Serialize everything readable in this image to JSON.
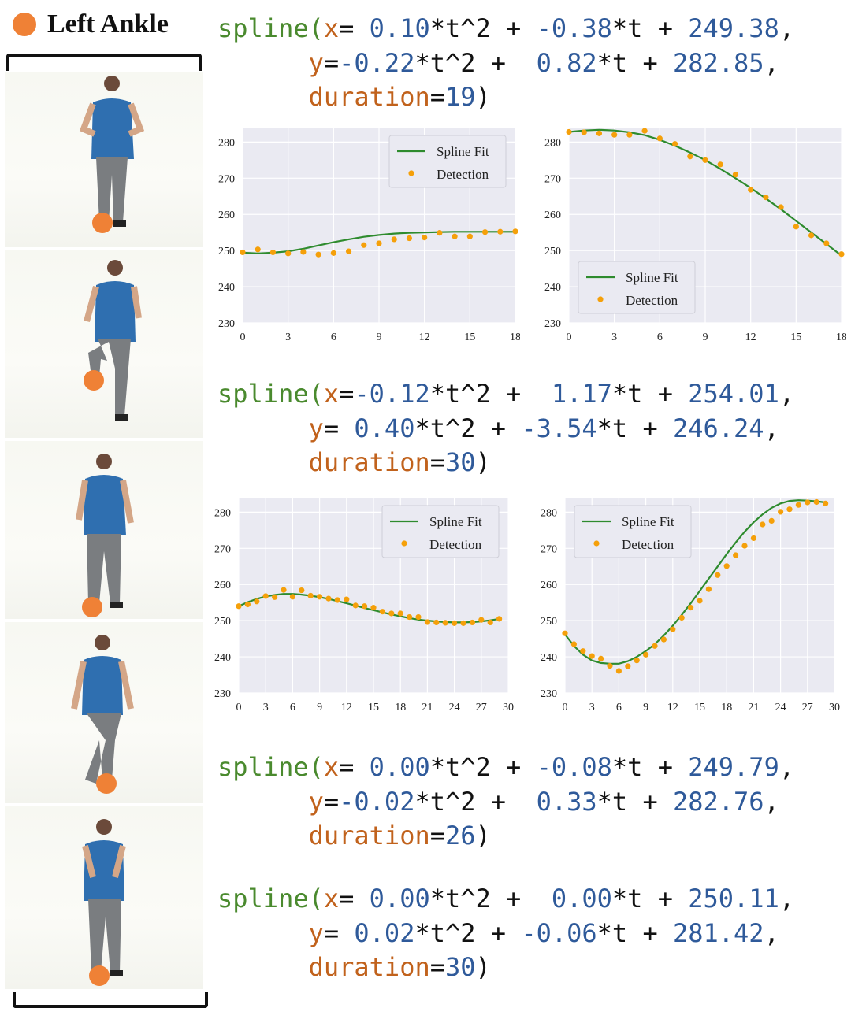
{
  "legend": {
    "label": "Left Ankle",
    "color": "#ef8136"
  },
  "colors": {
    "fit": "#2e8b2e",
    "detection": "#f5a00a",
    "keyword": "#4a8a2e",
    "arg": "#c1621c",
    "number": "#2f5a9a"
  },
  "splines": [
    {
      "fn": "spline(",
      "x_label": "x",
      "x_eq": "= ",
      "x_a": "0.10",
      "x_b": "-0.38",
      "x_c": "249.38",
      "y_label": "y",
      "y_eq": "=",
      "y_a": "-0.22",
      "y_b": "0.82",
      "y_c": "282.85",
      "dur_label": "duration",
      "dur": "19"
    },
    {
      "fn": "spline(",
      "x_label": "x",
      "x_eq": "=",
      "x_a": "-0.12",
      "x_b": "1.17",
      "x_c": "254.01",
      "y_label": "y",
      "y_eq": "= ",
      "y_a": "0.40",
      "y_b": "-3.54",
      "y_c": "246.24",
      "dur_label": "duration",
      "dur": "30"
    },
    {
      "fn": "spline(",
      "x_label": "x",
      "x_eq": "= ",
      "x_a": "0.00",
      "x_b": "-0.08",
      "x_c": "249.79",
      "y_label": "y",
      "y_eq": "=",
      "y_a": "-0.02",
      "y_b": "0.33",
      "y_c": "282.76",
      "dur_label": "duration",
      "dur": "26"
    },
    {
      "fn": "spline(",
      "x_label": "x",
      "x_eq": "= ",
      "x_a": "0.00",
      "x_b": "0.00",
      "x_c": "250.11",
      "y_label": "y",
      "y_eq": "= ",
      "y_a": "0.02",
      "y_b": "-0.06",
      "y_c": "281.42",
      "dur_label": "duration",
      "dur": "30"
    }
  ],
  "chart_data": [
    {
      "type": "line",
      "legend": [
        "Spline Fit",
        "Detection"
      ],
      "legend_position": "top-right",
      "xlim": [
        0,
        18
      ],
      "ylim": [
        230,
        284
      ],
      "xticks": [
        0,
        3,
        6,
        9,
        12,
        15,
        18
      ],
      "yticks": [
        230,
        240,
        250,
        260,
        270,
        280
      ],
      "grid": true,
      "coef": [
        0.1,
        -0.38,
        249.38
      ],
      "fit_y": [
        249.4,
        249.2,
        249.4,
        249.8,
        250.5,
        251.4,
        252.3,
        253.1,
        253.8,
        254.3,
        254.7,
        254.9,
        255.0,
        255.1,
        255.2,
        255.2,
        255.2,
        255.2,
        255.2
      ],
      "detection_y": [
        249.5,
        250.3,
        249.5,
        249.2,
        249.6,
        248.9,
        249.3,
        249.8,
        251.5,
        252.0,
        253.1,
        253.4,
        253.6,
        254.9,
        253.9,
        253.9,
        255.1,
        255.2,
        255.3
      ]
    },
    {
      "type": "line",
      "legend": [
        "Spline Fit",
        "Detection"
      ],
      "legend_position": "bottom-left",
      "xlim": [
        0,
        18
      ],
      "ylim": [
        230,
        284
      ],
      "xticks": [
        0,
        3,
        6,
        9,
        12,
        15,
        18
      ],
      "yticks": [
        230,
        240,
        250,
        260,
        270,
        280
      ],
      "grid": true,
      "coef": [
        -0.22,
        0.82,
        282.85
      ],
      "fit_y": [
        282.8,
        283.2,
        283.4,
        283.2,
        282.7,
        281.9,
        280.6,
        279.0,
        277.1,
        275.0,
        272.6,
        270.0,
        267.3,
        264.4,
        261.4,
        258.2,
        255.0,
        251.8,
        248.6
      ],
      "detection_y": [
        282.8,
        282.7,
        282.4,
        282.0,
        282.0,
        283.1,
        281.0,
        279.5,
        276.0,
        275.0,
        273.8,
        271.0,
        266.8,
        264.7,
        262.0,
        256.6,
        254.2,
        252.0,
        249.0
      ]
    },
    {
      "type": "line",
      "legend": [
        "Spline Fit",
        "Detection"
      ],
      "legend_position": "top-right",
      "xlim": [
        0,
        30
      ],
      "ylim": [
        230,
        284
      ],
      "xticks": [
        0,
        3,
        6,
        9,
        12,
        15,
        18,
        21,
        24,
        27,
        30
      ],
      "yticks": [
        230,
        240,
        250,
        260,
        270,
        280
      ],
      "grid": true,
      "coef": [
        -0.12,
        1.17,
        254.01
      ],
      "fit_y": [
        254.0,
        255.1,
        256.0,
        256.7,
        257.1,
        257.4,
        257.4,
        257.2,
        256.9,
        256.5,
        256.0,
        255.4,
        254.8,
        254.2,
        253.5,
        252.9,
        252.3,
        251.7,
        251.2,
        250.7,
        250.3,
        250.0,
        249.8,
        249.6,
        249.5,
        249.5,
        249.6,
        249.8,
        250.1,
        250.5
      ],
      "detection_y": [
        254.0,
        254.5,
        255.3,
        256.8,
        256.5,
        258.5,
        256.6,
        258.4,
        256.9,
        256.6,
        256.1,
        255.7,
        255.9,
        254.2,
        254.0,
        253.6,
        252.5,
        252.0,
        252.0,
        251.0,
        251.0,
        249.6,
        249.5,
        249.4,
        249.3,
        249.3,
        249.5,
        250.2,
        249.5,
        250.5
      ]
    },
    {
      "type": "line",
      "legend": [
        "Spline Fit",
        "Detection"
      ],
      "legend_position": "top-left",
      "xlim": [
        0,
        30
      ],
      "ylim": [
        230,
        284
      ],
      "xticks": [
        0,
        3,
        6,
        9,
        12,
        15,
        18,
        21,
        24,
        27,
        30
      ],
      "yticks": [
        230,
        240,
        250,
        260,
        270,
        280
      ],
      "grid": true,
      "coef": [
        0.4,
        -3.54,
        246.24
      ],
      "fit_y": [
        246.2,
        243.0,
        240.6,
        239.0,
        238.3,
        238.1,
        238.1,
        238.8,
        240.0,
        241.6,
        243.5,
        245.9,
        248.6,
        251.6,
        254.8,
        258.2,
        261.6,
        265.0,
        268.4,
        271.6,
        274.6,
        277.2,
        279.4,
        281.2,
        282.4,
        283.1,
        283.3,
        283.2,
        283.0,
        282.7
      ],
      "detection_y": [
        246.5,
        243.5,
        241.6,
        240.2,
        239.5,
        237.5,
        236.1,
        237.4,
        239.0,
        240.6,
        243.0,
        244.8,
        247.6,
        250.8,
        253.6,
        255.5,
        258.7,
        262.6,
        265.1,
        268.1,
        270.7,
        272.8,
        276.6,
        277.6,
        280.1,
        280.8,
        282.0,
        282.7,
        282.8,
        282.4
      ]
    }
  ]
}
